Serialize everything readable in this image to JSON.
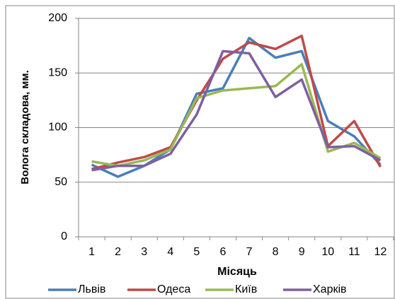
{
  "chart_data": {
    "type": "line",
    "x_label": "Місяць",
    "y_label": "Волога складова, мм.",
    "categories": [
      "1",
      "2",
      "3",
      "4",
      "5",
      "6",
      "7",
      "8",
      "9",
      "10",
      "11",
      "12"
    ],
    "series": [
      {
        "name": "Львів",
        "color": "#4a7ebb",
        "values": [
          66,
          55,
          65,
          80,
          131,
          136,
          182,
          164,
          170,
          106,
          92,
          66
        ]
      },
      {
        "name": "Одеса",
        "color": "#be4b48",
        "values": [
          62,
          68,
          73,
          82,
          125,
          163,
          178,
          172,
          184,
          83,
          106,
          64
        ]
      },
      {
        "name": "Київ",
        "color": "#98b954",
        "values": [
          69,
          65,
          70,
          80,
          127,
          134,
          136,
          138,
          158,
          78,
          86,
          72
        ]
      },
      {
        "name": "Харків",
        "color": "#7d60a0",
        "values": [
          61,
          65,
          65,
          76,
          112,
          170,
          168,
          128,
          144,
          82,
          83,
          70
        ]
      }
    ],
    "ylim": [
      0,
      200
    ],
    "yticks": [
      0,
      50,
      100,
      150,
      200
    ],
    "grid": true,
    "legend": "bottom"
  }
}
